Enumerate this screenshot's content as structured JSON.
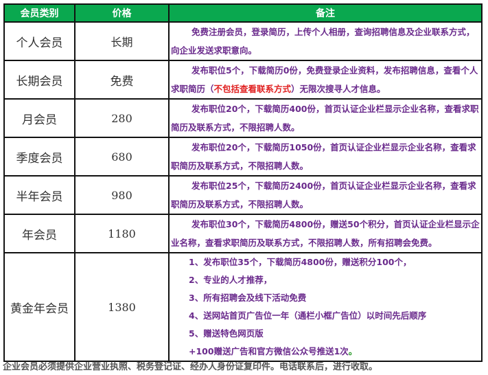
{
  "header": {
    "col_category": "会员类别",
    "col_price": "价格",
    "col_notes": "备注"
  },
  "rows": [
    {
      "category": "个人会员",
      "price": "长期",
      "note": "免费注册会员，登录简历，上传个人相册，查询招聘信息及企业联系方式，向企业发送求职意向。"
    },
    {
      "category": "长期会员",
      "price": "免费",
      "note_a": "发布职位5个，下载简历0份，免费登录企业资料，发布招聘信息，查看个人求职简历（",
      "note_red": "不包括查看联系方式",
      "note_b": "）无限次搜寻人才信息。"
    },
    {
      "category": "月会员",
      "price": "280",
      "note": "发布职位20个，下载简历400份，首页认证企业栏显示企业名称，查看求职简历及联系方式，不限招聘人数。"
    },
    {
      "category": "季度会员",
      "price": "680",
      "note": "发布职位20个，下载简历1050份，首页认证企业栏显示企业名称，查看求职简历及联系方式，不限招聘人数。"
    },
    {
      "category": "半年会员",
      "price": "980",
      "note": "发布职位25个，下载简历2400份，首页认证企业栏显示企业名称，查看求职简历及联系方式，不限招聘人数。"
    },
    {
      "category": "年会员",
      "price": "1180",
      "note": "发布职位30个，下载简历4800份，赠送50个积分，首页认证企业栏显示企业名称，查看求职简历及联系方式，不限招聘人数，所有招聘会免费。"
    },
    {
      "category": "黄金年会员",
      "price": "1380",
      "lines": [
        "1、发布职位35个，下载简历4800份，赠送积分100个，",
        "2、专业的人才推荐，",
        "3、所有招聘会及线下活动免费",
        "4、送网站首页广告位一年（通栏小框广告位）以时间先后顺序",
        "5、赠送特色网页版",
        "+100赠送广告和官方微信公众号推送1次"
      ],
      "end_mark": "。"
    }
  ],
  "footer": "企业会员必须提供企业营业执照、税务登记证、经办人身份证复印件。电话联系后，进行收取。",
  "colors": {
    "header_bg": "#0aa84f",
    "note_text": "#6a2a8c",
    "highlight": "#e02020"
  }
}
